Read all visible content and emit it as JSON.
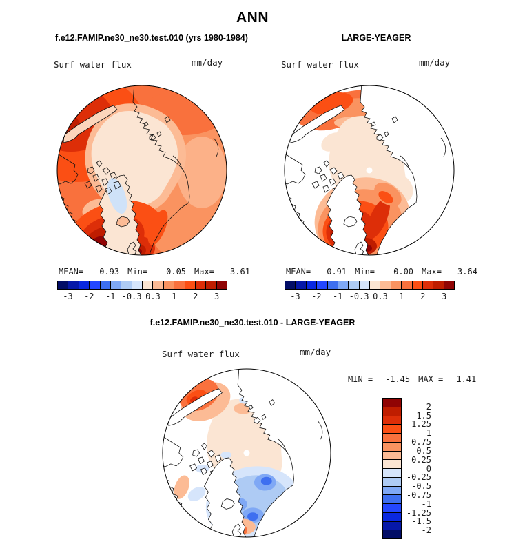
{
  "page_title": "ANN",
  "header": {
    "left_subtitle": "f.e12.FAMIP.ne30_ne30.test.010 (yrs 1980-1984)",
    "right_subtitle": "LARGE-YEAGER"
  },
  "panels": {
    "model": {
      "field": "Surf water flux",
      "units": "mm/day",
      "stats": {
        "mean_label": "MEAN=",
        "mean": "0.93",
        "min_label": "Min=",
        "min": "-0.05",
        "max_label": "Max=",
        "max": "3.61"
      }
    },
    "obs": {
      "field": "Surf water flux",
      "units": "mm/day",
      "stats": {
        "mean_label": "MEAN=",
        "mean": "0.91",
        "min_label": "Min=",
        "min": "0.00",
        "max_label": "Max=",
        "max": "3.64"
      }
    },
    "diff": {
      "title": "f.e12.FAMIP.ne30_ne30.test.010 - LARGE-YEAGER",
      "field": "Surf water flux",
      "units": "mm/day",
      "stats": {
        "min_label": "MIN =",
        "min": "-1.45",
        "max_label": "MAX =",
        "max": "1.41"
      }
    }
  },
  "palette": {
    "scale_blue_to_red": [
      "#020d66",
      "#0618a8",
      "#0a28e0",
      "#2447ff",
      "#3e6ff0",
      "#7fa8f5",
      "#aecbf4",
      "#d6e5fb",
      "#fbe5d3",
      "#fcbb95",
      "#fa9360",
      "#f9713d",
      "#fb4f14",
      "#dd2e08",
      "#bf1d00",
      "#900404"
    ]
  },
  "colorbars": {
    "horizontal_ticks": [
      "-3",
      "-2",
      "-1",
      "-0.3",
      "0.3",
      "1",
      "2",
      "3"
    ],
    "vertical_ticks": [
      "2",
      "1.5",
      "1.25",
      "1",
      "0.75",
      "0.5",
      "0.25",
      "0",
      "-0.25",
      "-0.5",
      "-0.75",
      "-1",
      "-1.25",
      "-1.5",
      "-2"
    ]
  },
  "chart_data": [
    {
      "type": "heatmap",
      "subtype": "north-polar-stereographic-filled-contour-map",
      "season": "ANN",
      "title": "f.e12.FAMIP.ne30_ne30.test.010 (yrs 1980-1984)",
      "variable": "Surf water flux",
      "units": "mm/day",
      "stats": {
        "mean": 0.93,
        "min": -0.05,
        "max": 3.61
      },
      "colorbar_tick_labels": [
        -3,
        -2,
        -1,
        -0.3,
        0.3,
        1,
        2,
        3
      ],
      "n_color_segments": 16,
      "legend_position": "bottom"
    },
    {
      "type": "heatmap",
      "subtype": "north-polar-stereographic-filled-contour-map",
      "season": "ANN",
      "title": "LARGE-YEAGER",
      "variable": "Surf water flux",
      "units": "mm/day",
      "stats": {
        "mean": 0.91,
        "min": 0.0,
        "max": 3.64
      },
      "colorbar_tick_labels": [
        -3,
        -2,
        -1,
        -0.3,
        0.3,
        1,
        2,
        3
      ],
      "n_color_segments": 16,
      "legend_position": "bottom"
    },
    {
      "type": "heatmap",
      "subtype": "north-polar-stereographic-filled-contour-map",
      "season": "ANN",
      "title": "f.e12.FAMIP.ne30_ne30.test.010 - LARGE-YEAGER",
      "variable": "Surf water flux",
      "units": "mm/day",
      "stats": {
        "min": -1.45,
        "max": 1.41
      },
      "colorbar_tick_labels": [
        2,
        1.5,
        1.25,
        1,
        0.75,
        0.5,
        0.25,
        0,
        -0.25,
        -0.5,
        -0.75,
        -1,
        -1.25,
        -1.5,
        -2
      ],
      "n_color_segments": 16,
      "legend_position": "right"
    }
  ]
}
